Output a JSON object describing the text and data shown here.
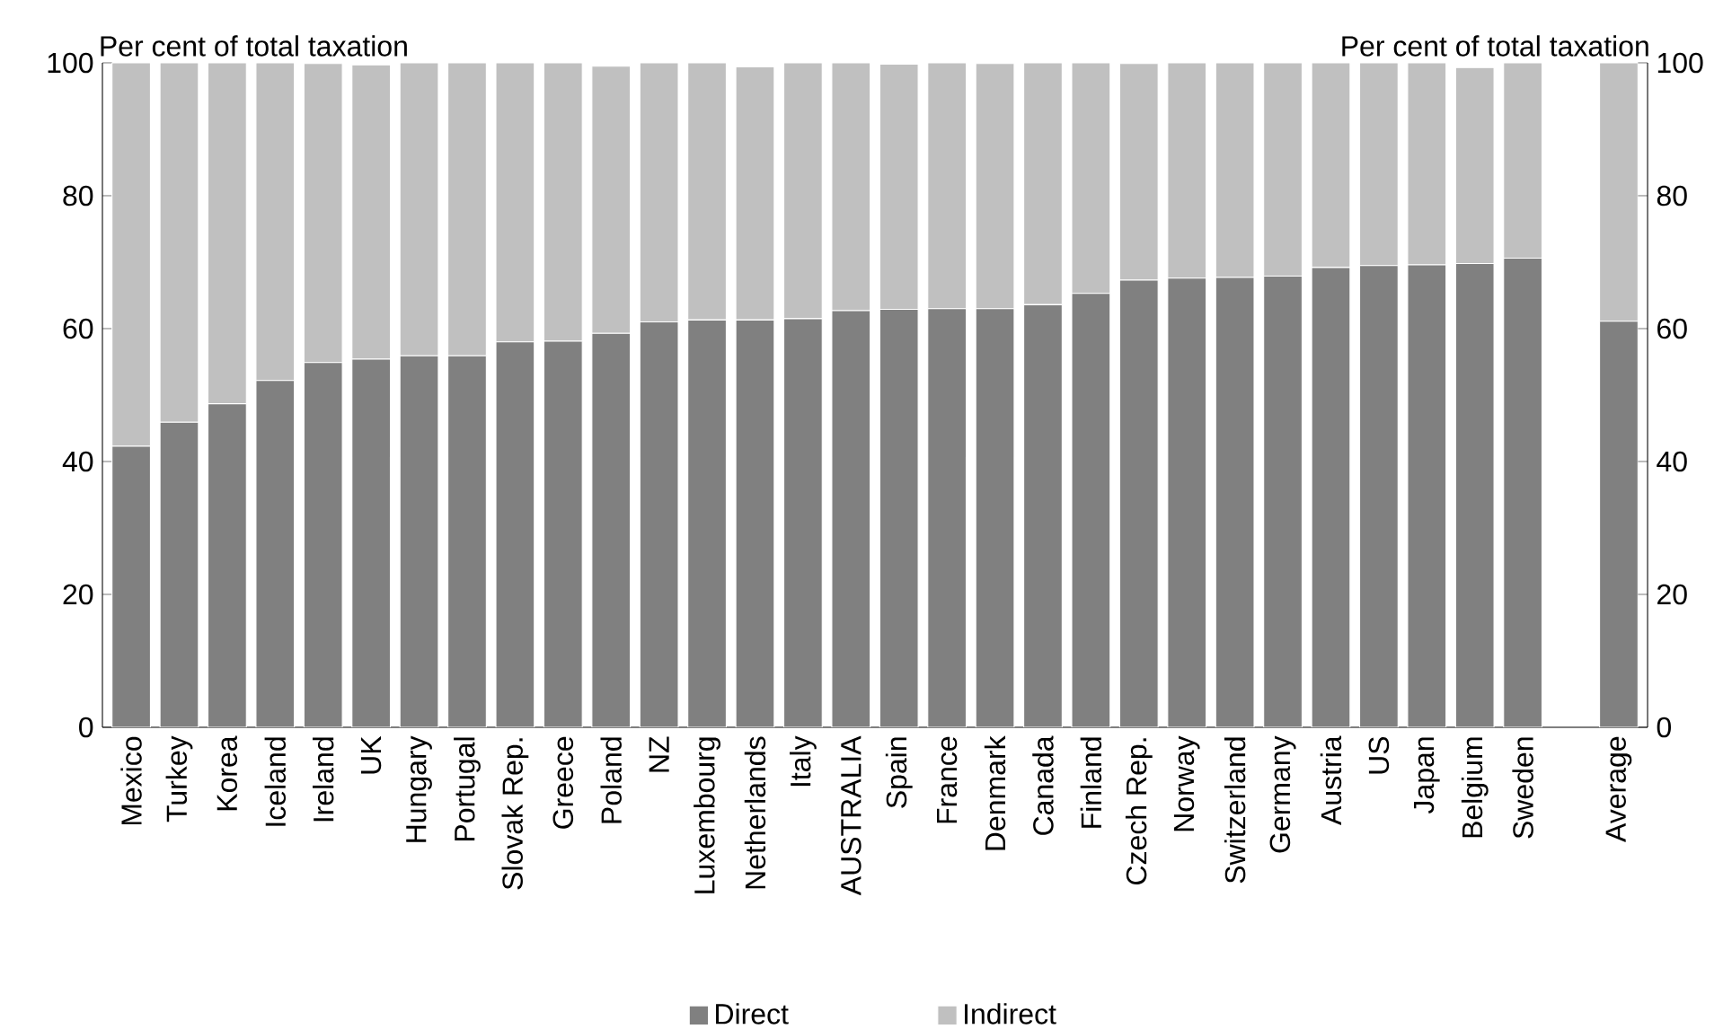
{
  "chart_data": {
    "type": "bar",
    "stacked": true,
    "annotations": [
      "Per cent of total taxation",
      "Per cent of total taxation"
    ],
    "categories": [
      "Mexico",
      "Turkey",
      "Korea",
      "Iceland",
      "Ireland",
      "UK",
      "Hungary",
      "Portugal",
      "Slovak Rep.",
      "Greece",
      "Poland",
      "NZ",
      "Luxembourg",
      "Netherlands",
      "Italy",
      "AUSTRALIA",
      "Spain",
      "France",
      "Denmark",
      "Canada",
      "Finland",
      "Czech Rep.",
      "Norway",
      "Switzerland",
      "Germany",
      "Austria",
      "US",
      "Japan",
      "Belgium",
      "Sweden",
      null,
      "Average"
    ],
    "series": [
      {
        "name": "Direct",
        "color": "#808080",
        "values": [
          42.3,
          45.9,
          48.7,
          52.2,
          54.9,
          55.4,
          55.9,
          55.9,
          58.0,
          58.1,
          59.3,
          61.0,
          61.3,
          61.3,
          61.5,
          62.7,
          62.9,
          63.0,
          63.0,
          63.6,
          65.3,
          67.3,
          67.6,
          67.7,
          67.9,
          69.2,
          69.5,
          69.6,
          69.8,
          70.6,
          null,
          61.1
        ]
      },
      {
        "name": "Indirect",
        "color": "#c0c0c0",
        "values": [
          57.7,
          54.1,
          51.3,
          47.8,
          45.0,
          44.3,
          44.1,
          44.1,
          42.0,
          41.9,
          40.2,
          39.0,
          38.7,
          38.1,
          38.5,
          37.3,
          36.9,
          37.0,
          36.9,
          36.4,
          34.7,
          32.6,
          32.4,
          32.3,
          32.1,
          30.8,
          30.5,
          30.4,
          29.5,
          29.4,
          null,
          38.9
        ]
      }
    ],
    "ylim": [
      0,
      100
    ],
    "yticks": [
      0,
      20,
      40,
      60,
      80,
      100
    ],
    "y2lim": [
      0,
      100
    ],
    "y2ticks": [
      0,
      20,
      40,
      60,
      80,
      100
    ],
    "grid": false,
    "legend": "bottom"
  }
}
